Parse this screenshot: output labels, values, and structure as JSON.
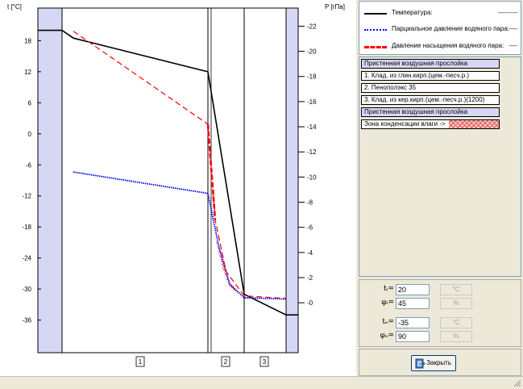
{
  "chart_data": {
    "type": "line",
    "left_axis": {
      "title": "t [°C]",
      "ticks": [
        18,
        12,
        6,
        0,
        -6,
        -12,
        -18,
        -24,
        -30,
        -36
      ],
      "range": [
        -42.3,
        24.3
      ]
    },
    "right_axis": {
      "title": "P [гПа]",
      "ticks": [
        22,
        20,
        18,
        16,
        14,
        12,
        10,
        8,
        6,
        4,
        2,
        0
      ],
      "range": [
        -3.97,
        23.44
      ]
    },
    "layer_labels": [
      "1",
      "2",
      "3"
    ],
    "grid": false,
    "legend_position": "right panel",
    "x_positions_note": "",
    "series": [
      {
        "name": "Температура",
        "color": "#000000",
        "style": "solid",
        "axis": "left",
        "points": [
          [
            0,
            20
          ],
          [
            1,
            20
          ],
          [
            2,
            18.5
          ],
          [
            3,
            12
          ],
          [
            4,
            -31
          ],
          [
            5,
            -35
          ],
          [
            6,
            -35
          ]
        ]
      },
      {
        "name": "Парциальное давление водяного пара",
        "color": "#0000ff",
        "style": "dotted",
        "axis": "right",
        "points": [
          [
            2,
            10.4
          ],
          [
            3,
            8.7
          ],
          [
            3.3,
            4.5
          ],
          [
            3.6,
            1.5
          ],
          [
            4,
            0.4
          ],
          [
            5,
            0.3
          ]
        ]
      },
      {
        "name": "Давление насыщения водяного пара",
        "color": "#ff0000",
        "style": "dashed",
        "axis": "right",
        "points": [
          [
            2,
            21.6
          ],
          [
            3,
            14.2
          ],
          [
            3.2,
            6.6
          ],
          [
            3.5,
            2.5
          ],
          [
            4,
            0.55
          ],
          [
            5,
            0.35
          ]
        ]
      }
    ],
    "condensation_zone": {
      "from": 3.05,
      "to": 4.3
    }
  },
  "legend": {
    "items": [
      {
        "label": "Температура:",
        "value": "---------",
        "color": "#000000",
        "style": "solid"
      },
      {
        "label": "Парциальное давление водяного пара:",
        "value": "----",
        "color": "#0000ff",
        "style": "dotted"
      },
      {
        "label": "Давление насыщения водяного пара:",
        "value": "----",
        "color": "#ff0000",
        "style": "dashed"
      }
    ]
  },
  "layers": [
    {
      "label": "Пристенная воздушная прослойка",
      "type": "air"
    },
    {
      "label": "1. Клад. из глин.кирп.(цем.-песч.р.)",
      "type": "layer"
    },
    {
      "label": "2. Пенополэкс 35",
      "type": "layer"
    },
    {
      "label": "3. Клад. из кер.кирп.(цем.-песч.р.)(1200)",
      "type": "layer"
    },
    {
      "label": "Пристенная воздушная прослойка",
      "type": "air"
    },
    {
      "label": "Зона конденсации влаги ->",
      "type": "condensation"
    }
  ],
  "params": {
    "ti": {
      "label": "tᵢ=",
      "value": "20",
      "unit": "°C"
    },
    "phii": {
      "label": "φᵢ=",
      "value": "45",
      "unit": "%"
    },
    "te": {
      "label": "tₑ=",
      "value": "-35",
      "unit": "°C"
    },
    "phie": {
      "label": "φₑ=",
      "value": "90",
      "unit": "%"
    }
  },
  "buttons": {
    "close_label": "Закрыть"
  },
  "colors": {
    "air_layer": "#d6d6f5",
    "temperature": "#000000",
    "partial": "#0000ff",
    "saturation": "#ff0000"
  }
}
